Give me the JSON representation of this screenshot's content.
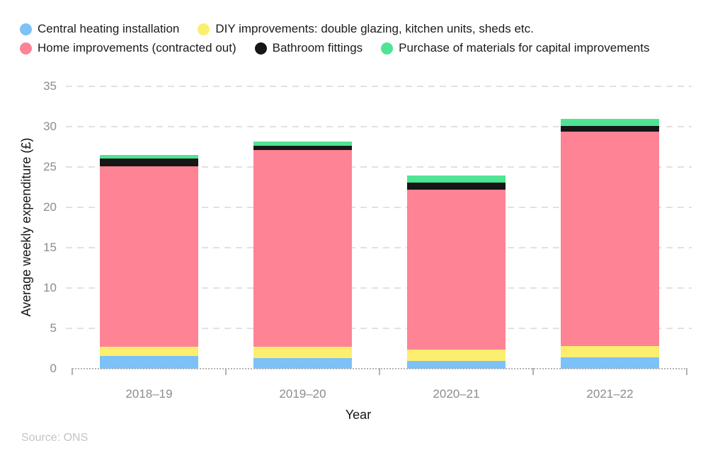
{
  "source_note": "Source: ONS",
  "chart_data": {
    "type": "bar",
    "stacked": true,
    "title": "",
    "xlabel": "Year",
    "ylabel": "Average weekly expenditure (£)",
    "ylim": [
      0,
      35
    ],
    "ytick_step": 5,
    "grid": "horizontal dashed",
    "legend_position": "top",
    "categories": [
      "2018–19",
      "2019–20",
      "2020–21",
      "2021–22"
    ],
    "series": [
      {
        "name": "Central heating installation",
        "color": "#7cc1f8",
        "values": [
          1.6,
          1.3,
          1.0,
          1.4
        ]
      },
      {
        "name": "DIY improvements: double glazing, kitchen units, sheds etc.",
        "color": "#fcee6e",
        "values": [
          1.1,
          1.4,
          1.4,
          1.4
        ]
      },
      {
        "name": "Home improvements (contracted out)",
        "color": "#fd8395",
        "values": [
          22.4,
          24.4,
          19.8,
          26.6
        ]
      },
      {
        "name": "Bathroom fittings",
        "color": "#161616",
        "values": [
          1.0,
          0.5,
          0.9,
          0.7
        ]
      },
      {
        "name": "Purchase of materials for capital improvements",
        "color": "#4de494",
        "values": [
          0.4,
          0.5,
          0.9,
          0.9
        ]
      }
    ],
    "totals": [
      26.5,
      28.1,
      24.0,
      31.0
    ]
  }
}
